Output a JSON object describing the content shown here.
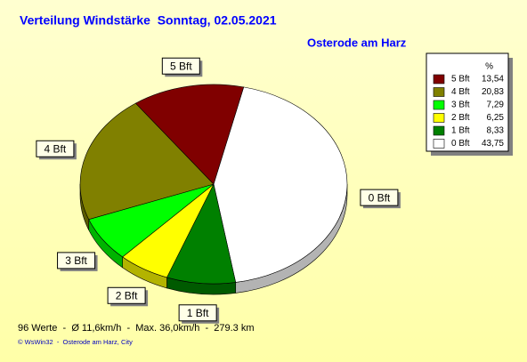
{
  "chart_data": {
    "type": "pie",
    "title": "Verteilung Windstärke  Sonntag, 02.05.2021",
    "subtitle": "Osterode am Harz",
    "legend_title": "%",
    "categories": [
      "5 Bft",
      "4 Bft",
      "3 Bft",
      "2 Bft",
      "1 Bft",
      "0 Bft"
    ],
    "values": [
      13.54,
      20.83,
      7.29,
      6.25,
      8.33,
      43.75
    ],
    "value_labels": [
      "13,54",
      "20,83",
      "7,29",
      "6,25",
      "8,33",
      "43,75"
    ],
    "colors": [
      "#800000",
      "#808000",
      "#00ff00",
      "#ffff00",
      "#008000",
      "#ffffff"
    ],
    "legend": "top-right",
    "notes": [
      "96 Werte  -  Ø 11,6km/h  -  Max. 36,0km/h  -  279.3 km",
      "© WsWin32  -  Osterode am Harz, City"
    ]
  }
}
